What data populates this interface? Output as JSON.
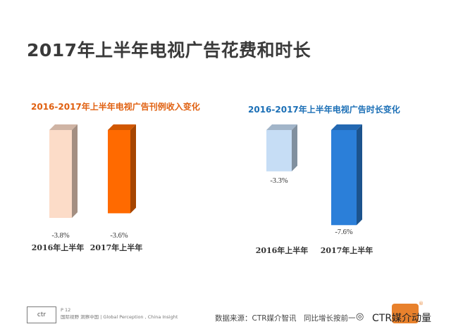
{
  "page_title": "2017年上半年电视广告花费和时长",
  "chart_data": [
    {
      "type": "bar",
      "title": "2016-2017年上半年电视广告刊例收入变化",
      "categories": [
        "2016年上半年",
        "2017年上半年"
      ],
      "values": [
        -3.8,
        -3.6
      ],
      "value_labels": [
        "-3.8%",
        "-3.6%"
      ],
      "colors": [
        "#fcdcc8",
        "#ff6a00"
      ],
      "title_color": "#e06010",
      "ylim": [
        -4,
        0
      ],
      "xlabel": "",
      "ylabel": ""
    },
    {
      "type": "bar",
      "title": "2016-2017年上半年电视广告时长变化",
      "categories": [
        "2016年上半年",
        "2017年上半年"
      ],
      "values": [
        -3.3,
        -7.6
      ],
      "value_labels": [
        "-3.3%",
        "-7.6%"
      ],
      "colors": [
        "#c6ddf5",
        "#2b7fd9"
      ],
      "title_color": "#1b6fb6",
      "ylim": [
        -8,
        0
      ],
      "xlabel": "",
      "ylabel": ""
    }
  ],
  "footer": {
    "page_number": "P 12",
    "tagline": "国际视野 洞察中国 | Global Perception , China Insight",
    "logo_text": "ctr",
    "source": "数据来源：CTR媒介智讯　同比增长按前一",
    "watermark": "CTR媒介动量",
    "watermark_icon": "wechat-icon"
  }
}
